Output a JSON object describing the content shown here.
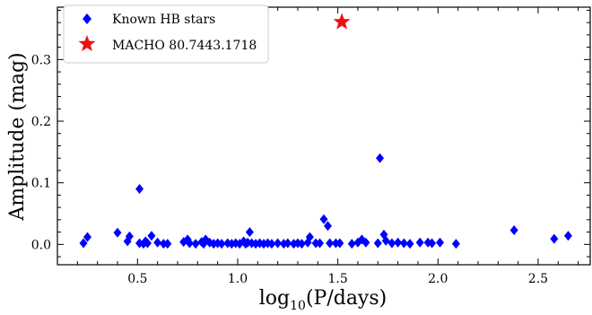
{
  "chart_data": {
    "type": "scatter",
    "xlabel": "log10(P/days)",
    "xlabel_main": "log",
    "xlabel_sub": "10",
    "xlabel_rest": "(P/days)",
    "ylabel": "Amplitude (mag)",
    "xlim": [
      0.1,
      2.76
    ],
    "ylim": [
      -0.033,
      0.385
    ],
    "xticks": [
      0.5,
      1.0,
      1.5,
      2.0,
      2.5
    ],
    "xtick_labels": [
      "0.5",
      "1.0",
      "1.5",
      "2.0",
      "2.5"
    ],
    "yticks": [
      0.0,
      0.1,
      0.2,
      0.3
    ],
    "ytick_labels": [
      "0.0",
      "0.1",
      "0.2",
      "0.3"
    ],
    "legend_position": "top-left",
    "series": [
      {
        "name": "Known HB stars",
        "marker": "diamond",
        "color": "#0000ff",
        "points": [
          [
            0.23,
            0.002
          ],
          [
            0.25,
            0.012
          ],
          [
            0.4,
            0.019
          ],
          [
            0.45,
            0.005
          ],
          [
            0.46,
            0.013
          ],
          [
            0.51,
            0.09
          ],
          [
            0.51,
            0.002
          ],
          [
            0.53,
            0.001
          ],
          [
            0.54,
            0.005
          ],
          [
            0.55,
            0.002
          ],
          [
            0.57,
            0.014
          ],
          [
            0.6,
            0.003
          ],
          [
            0.63,
            0.001
          ],
          [
            0.65,
            0.001
          ],
          [
            0.73,
            0.004
          ],
          [
            0.75,
            0.008
          ],
          [
            0.76,
            0.002
          ],
          [
            0.79,
            0.001
          ],
          [
            0.82,
            0.004
          ],
          [
            0.83,
            0.001
          ],
          [
            0.84,
            0.008
          ],
          [
            0.86,
            0.003
          ],
          [
            0.88,
            0.001
          ],
          [
            0.9,
            0.002
          ],
          [
            0.92,
            0.001
          ],
          [
            0.95,
            0.002
          ],
          [
            0.97,
            0.001
          ],
          [
            0.99,
            0.002
          ],
          [
            1.01,
            0.001
          ],
          [
            1.03,
            0.005
          ],
          [
            1.04,
            0.001
          ],
          [
            1.05,
            0.003
          ],
          [
            1.06,
            0.02
          ],
          [
            1.07,
            0.002
          ],
          [
            1.09,
            0.001
          ],
          [
            1.11,
            0.002
          ],
          [
            1.13,
            0.001
          ],
          [
            1.15,
            0.002
          ],
          [
            1.17,
            0.001
          ],
          [
            1.2,
            0.002
          ],
          [
            1.23,
            0.001
          ],
          [
            1.25,
            0.002
          ],
          [
            1.28,
            0.001
          ],
          [
            1.3,
            0.002
          ],
          [
            1.32,
            0.001
          ],
          [
            1.35,
            0.003
          ],
          [
            1.36,
            0.012
          ],
          [
            1.39,
            0.002
          ],
          [
            1.41,
            0.002
          ],
          [
            1.43,
            0.041
          ],
          [
            1.45,
            0.03
          ],
          [
            1.46,
            0.002
          ],
          [
            1.49,
            0.002
          ],
          [
            1.51,
            0.002
          ],
          [
            1.57,
            0.001
          ],
          [
            1.6,
            0.003
          ],
          [
            1.62,
            0.008
          ],
          [
            1.64,
            0.003
          ],
          [
            1.7,
            0.002
          ],
          [
            1.71,
            0.14
          ],
          [
            1.73,
            0.016
          ],
          [
            1.74,
            0.006
          ],
          [
            1.77,
            0.002
          ],
          [
            1.8,
            0.003
          ],
          [
            1.83,
            0.002
          ],
          [
            1.86,
            0.001
          ],
          [
            1.91,
            0.003
          ],
          [
            1.95,
            0.003
          ],
          [
            1.97,
            0.002
          ],
          [
            2.01,
            0.003
          ],
          [
            2.09,
            0.001
          ],
          [
            2.38,
            0.023
          ],
          [
            2.58,
            0.009
          ],
          [
            2.65,
            0.014
          ]
        ]
      },
      {
        "name": "MACHO 80.7443.1718",
        "marker": "star",
        "color": "#ee1111",
        "points": [
          [
            1.52,
            0.361
          ]
        ]
      }
    ]
  }
}
